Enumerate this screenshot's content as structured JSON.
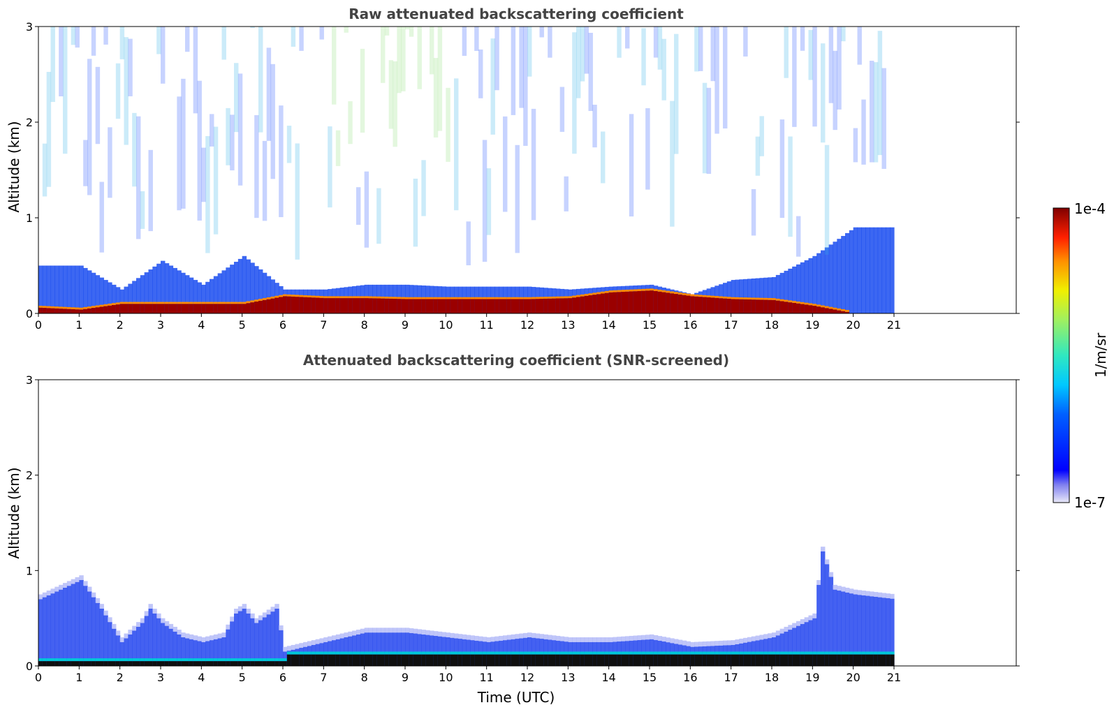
{
  "chart_data": [
    {
      "type": "heatmap",
      "title": "Raw attenuated backscattering coefficient",
      "ylabel": "Altitude (km)",
      "xlabel": "",
      "xlim": [
        0,
        24
      ],
      "ylim": [
        0,
        3
      ],
      "x_ticks": [
        "0",
        "1",
        "2",
        "3",
        "4",
        "5",
        "6",
        "7",
        "8",
        "9",
        "10",
        "11",
        "12",
        "13",
        "14",
        "15",
        "16",
        "17",
        "18",
        "19",
        "20",
        "21"
      ],
      "y_ticks": [
        "0",
        "1",
        "2",
        "3"
      ],
      "data_extent_x": [
        0,
        21
      ],
      "grid": false,
      "series": [
        {
          "name": "surface_layer_top_km",
          "x": [
            0,
            1,
            2,
            3,
            4,
            5,
            6,
            7,
            8,
            9,
            10,
            11,
            12,
            13,
            14,
            15,
            16,
            17,
            18,
            19,
            20,
            21
          ],
          "values": [
            0.06,
            0.04,
            0.1,
            0.1,
            0.1,
            0.1,
            0.18,
            0.16,
            0.16,
            0.15,
            0.15,
            0.15,
            0.15,
            0.16,
            0.22,
            0.24,
            0.18,
            0.15,
            0.14,
            0.08,
            0.0,
            0.0
          ]
        },
        {
          "name": "aerosol_top_km",
          "x": [
            0,
            1,
            2,
            3,
            4,
            5,
            6,
            7,
            8,
            9,
            10,
            11,
            12,
            13,
            14,
            15,
            16,
            17,
            18,
            19,
            20,
            21
          ],
          "values": [
            0.5,
            0.5,
            0.25,
            0.55,
            0.3,
            0.6,
            0.25,
            0.25,
            0.3,
            0.3,
            0.28,
            0.28,
            0.28,
            0.25,
            0.28,
            0.3,
            0.2,
            0.35,
            0.38,
            0.6,
            0.9,
            0.9
          ]
        }
      ]
    },
    {
      "type": "heatmap",
      "title": "Attenuated backscattering coefficient (SNR-screened)",
      "ylabel": "Altitude (km)",
      "xlabel": "Time (UTC)",
      "xlim": [
        0,
        24
      ],
      "ylim": [
        0,
        3
      ],
      "x_ticks": [
        "0",
        "1",
        "2",
        "3",
        "4",
        "5",
        "6",
        "7",
        "8",
        "9",
        "10",
        "11",
        "12",
        "13",
        "14",
        "15",
        "16",
        "17",
        "18",
        "19",
        "20",
        "21"
      ],
      "y_ticks": [
        "0",
        "1",
        "2",
        "3"
      ],
      "data_extent_x": [
        0,
        21
      ],
      "grid": false,
      "series": [
        {
          "name": "boundary_layer_top_km",
          "x": [
            0,
            0.5,
            1,
            1.5,
            2,
            2.5,
            2.7,
            3,
            3.5,
            4,
            4.5,
            4.8,
            5,
            5.3,
            5.8,
            6,
            7,
            8,
            9,
            10,
            11,
            12,
            13,
            14,
            15,
            16,
            17,
            18,
            19,
            19.2,
            19.5,
            20,
            21
          ],
          "values": [
            0.7,
            0.8,
            0.9,
            0.6,
            0.25,
            0.45,
            0.6,
            0.45,
            0.3,
            0.25,
            0.3,
            0.55,
            0.6,
            0.45,
            0.6,
            0.15,
            0.25,
            0.35,
            0.35,
            0.3,
            0.25,
            0.3,
            0.25,
            0.25,
            0.28,
            0.2,
            0.22,
            0.3,
            0.5,
            1.2,
            0.8,
            0.75,
            0.7
          ]
        }
      ]
    }
  ],
  "colorbar": {
    "top_label": "1e-4",
    "bottom_label": "1e-7",
    "unit_label": "1/m/sr"
  }
}
